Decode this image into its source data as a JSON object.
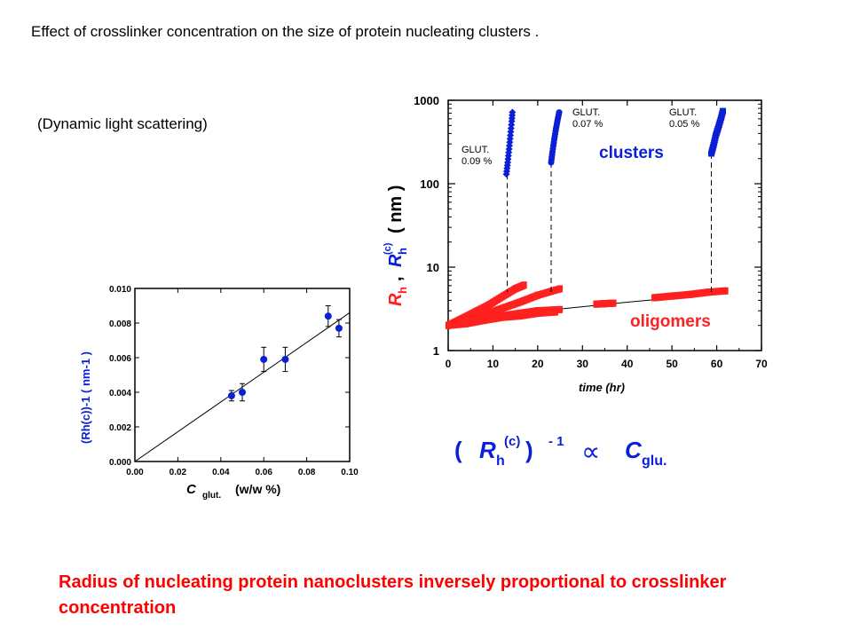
{
  "slide": {
    "title": "Effect of crosslinker concentration on the size of  protein nucleating clusters .",
    "subtitle": "(Dynamic light scattering)",
    "conclusion": "Radius of nucleating protein nanoclusters inversely proportional to crosslinker concentration",
    "formula": {
      "lhs_open": "( ",
      "R": "R",
      "h_sub": "h",
      "c_sup": "(c)",
      "rhs_close": " )",
      "exp": " - 1",
      "prop": "∝",
      "C": "C",
      "glu_sub": "glu."
    }
  },
  "colors": {
    "blue": "#0a1fd6",
    "red": "#ff2020",
    "black": "#000000"
  },
  "chart_data": [
    {
      "type": "scatter",
      "title": "",
      "xlabel_main": "C",
      "xlabel_sub": "glut.",
      "xlabel_unit": "(w/w %)",
      "ylabel": "(Rh(c))-1  ( nm-1 )",
      "xlim": [
        0,
        0.1
      ],
      "ylim": [
        0,
        0.01
      ],
      "x_ticks": [
        "0.00",
        "0.02",
        "0.04",
        "0.06",
        "0.08",
        "0.10"
      ],
      "y_ticks": [
        "0.000",
        "0.002",
        "0.004",
        "0.006",
        "0.008",
        "0.010"
      ],
      "points": [
        {
          "x": 0.045,
          "y": 0.0038,
          "err": 0.0003
        },
        {
          "x": 0.05,
          "y": 0.004,
          "err": 0.0005
        },
        {
          "x": 0.06,
          "y": 0.0059,
          "err": 0.0007
        },
        {
          "x": 0.07,
          "y": 0.0059,
          "err": 0.0007
        },
        {
          "x": 0.09,
          "y": 0.0084,
          "err": 0.0006
        },
        {
          "x": 0.095,
          "y": 0.0077,
          "err": 0.0005
        }
      ],
      "fit_line": [
        [
          0,
          0
        ],
        [
          0.1,
          0.0086
        ]
      ],
      "grid": false
    },
    {
      "type": "scatter",
      "title": "",
      "xlabel": "time (hr)",
      "ylabel_R": "R",
      "ylabel_h": "h",
      "ylabel_R2": "R",
      "ylabel_c": "(c)",
      "ylabel_unit": "( nm )",
      "x_scale": "linear",
      "y_scale": "log",
      "xlim": [
        0,
        70
      ],
      "ylim": [
        1,
        1000
      ],
      "x_ticks": [
        "0",
        "10",
        "20",
        "30",
        "40",
        "50",
        "60",
        "70"
      ],
      "y_ticks": [
        "1",
        "10",
        "100",
        "1000"
      ],
      "labels": {
        "clusters": "clusters",
        "oligomers": "oligomers"
      },
      "annotations": [
        {
          "line1": "GLUT.",
          "line2": "0.09 %"
        },
        {
          "line1": "GLUT.",
          "line2": "0.07 %"
        },
        {
          "line1": "GLUT.",
          "line2": "0.05 %"
        }
      ],
      "cluster_series": [
        {
          "name": "0.09 %",
          "x": [
            13.0,
            13.3,
            13.6,
            13.9,
            14.2,
            14.4
          ],
          "y": [
            130,
            180,
            260,
            380,
            560,
            780
          ],
          "onset_x": 13.2
        },
        {
          "name": "0.07 %",
          "x": [
            23.0,
            23.3,
            23.7,
            24.1,
            24.5,
            24.9
          ],
          "y": [
            180,
            240,
            340,
            460,
            600,
            760
          ],
          "onset_x": 23.0
        },
        {
          "name": "0.05 %",
          "x": [
            58.8,
            59.3,
            59.8,
            60.4,
            61.0,
            61.5
          ],
          "y": [
            230,
            290,
            380,
            480,
            620,
            790
          ],
          "onset_x": 58.8
        }
      ],
      "oligomer_series": [
        {
          "x": [
            0,
            3,
            6,
            9,
            12,
            15,
            17
          ],
          "y": [
            2.0,
            2.4,
            2.9,
            3.5,
            4.4,
            5.5,
            6.1
          ]
        },
        {
          "x": [
            0,
            4,
            8,
            12,
            16,
            20,
            25
          ],
          "y": [
            2.0,
            2.3,
            2.7,
            3.2,
            3.8,
            4.6,
            5.5
          ]
        },
        {
          "x": [
            0,
            4,
            8,
            12,
            16,
            20,
            25
          ],
          "y": [
            2.0,
            2.2,
            2.4,
            2.6,
            2.8,
            3.0,
            3.1
          ]
        },
        {
          "x": [
            0,
            4,
            8,
            12,
            16,
            20,
            24
          ],
          "y": [
            2.0,
            2.1,
            2.3,
            2.5,
            2.6,
            2.8,
            2.9
          ]
        },
        {
          "x": [
            33,
            35,
            37
          ],
          "y": [
            3.6,
            3.65,
            3.7
          ]
        },
        {
          "x": [
            46,
            50,
            54,
            58,
            62
          ],
          "y": [
            4.3,
            4.5,
            4.7,
            5.0,
            5.2
          ]
        }
      ],
      "trend_line": {
        "x": [
          0,
          10,
          20,
          30,
          40,
          50,
          60,
          62
        ],
        "y": [
          2.0,
          2.5,
          2.95,
          3.35,
          3.8,
          4.25,
          4.75,
          5.0
        ]
      },
      "grid": false
    }
  ]
}
